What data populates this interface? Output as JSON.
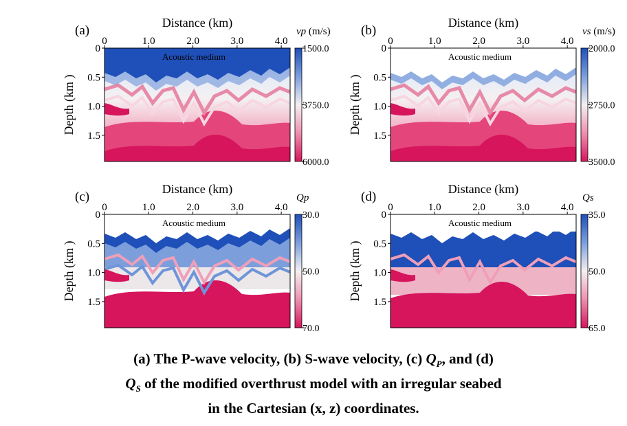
{
  "figure": {
    "caption": {
      "part1": "(a) The P-wave velocity, (b) S-wave velocity, (c) ",
      "qp_main": "Q",
      "qp_sub": "P",
      "part2": ", and (d)",
      "qs_main": "Q",
      "qs_sub": "S",
      "part3": " of the modified overthrust model with an irregular seabed",
      "part4": "in the Cartesian (x, z) coordinates."
    }
  },
  "colors": {
    "blue_dark": "#1f4fb8",
    "blue_mid": "#7c9fdc",
    "white": "#f4f0f1",
    "pink_light": "#ef9fb8",
    "pink": "#e4457a",
    "magenta": "#d6155c",
    "annotation_yellow": "#ffff00",
    "annotation_black": "#000000"
  },
  "chart_data": [
    {
      "type": "heatmap",
      "panel": "(a)",
      "xlabel": "Distance (km)",
      "ylabel": "Depth (km )",
      "xticks": [
        "0",
        "1.0",
        "2.0",
        "3.0",
        "4.0"
      ],
      "yticks": [
        "0",
        "0.5",
        "1.0",
        "1.5"
      ],
      "xlim": [
        0,
        4.2
      ],
      "ylim": [
        0,
        1.95
      ],
      "annotation": "Acoustic medium",
      "annotation_color": "yellow",
      "colorbar": {
        "title": "vp",
        "unit": "(m/s)",
        "ticks": [
          "1500.0",
          "3750.0",
          "6000.0"
        ],
        "range": [
          1500,
          6000
        ]
      },
      "seabed_depth_range_km": [
        0.3,
        0.55
      ],
      "style": "smooth"
    },
    {
      "type": "heatmap",
      "panel": "(b)",
      "xlabel": "Distance (km)",
      "ylabel": "Depth (km )",
      "xticks": [
        "0",
        "1.0",
        "2.0",
        "3.0",
        "4.0"
      ],
      "yticks": [
        "0",
        "0.5",
        "1.0",
        "1.5"
      ],
      "xlim": [
        0,
        4.2
      ],
      "ylim": [
        0,
        1.95
      ],
      "annotation": "Acoustic medium",
      "annotation_color": "black",
      "colorbar": {
        "title": "vs",
        "unit": "(m/s)",
        "ticks": [
          "2000.0",
          "2750.0",
          "3500.0"
        ],
        "range": [
          2000,
          3500
        ]
      },
      "seabed_depth_range_km": [
        0.3,
        0.55
      ],
      "style": "smooth"
    },
    {
      "type": "heatmap",
      "panel": "(c)",
      "xlabel": "Distance (km)",
      "ylabel": "Depth (km )",
      "xticks": [
        "0",
        "1.0",
        "2.0",
        "3.0",
        "4.0"
      ],
      "yticks": [
        "0",
        "0.5",
        "1.0",
        "1.5"
      ],
      "xlim": [
        0,
        4.2
      ],
      "ylim": [
        0,
        1.95
      ],
      "annotation": "Acoustic medium",
      "annotation_color": "black",
      "colorbar": {
        "title": "Qp",
        "unit": "",
        "ticks": [
          "30.0",
          "50.0",
          "70.0"
        ],
        "range": [
          30,
          70
        ]
      },
      "seabed_depth_range_km": [
        0.3,
        0.55
      ],
      "style": "layered"
    },
    {
      "type": "heatmap",
      "panel": "(d)",
      "xlabel": "Distance (km)",
      "ylabel": "Depth (km )",
      "xticks": [
        "0",
        "1.0",
        "2.0",
        "3.0",
        "4.0"
      ],
      "yticks": [
        "0",
        "0.5",
        "1.0",
        "1.5"
      ],
      "xlim": [
        0,
        4.2
      ],
      "ylim": [
        0,
        1.95
      ],
      "annotation": "Acoustic medium",
      "annotation_color": "black",
      "colorbar": {
        "title": "Qs",
        "unit": "",
        "ticks": [
          "35.0",
          "50.0",
          "65.0"
        ],
        "range": [
          35,
          65
        ]
      },
      "seabed_depth_range_km": [
        0.3,
        0.55
      ],
      "style": "blocky"
    }
  ]
}
